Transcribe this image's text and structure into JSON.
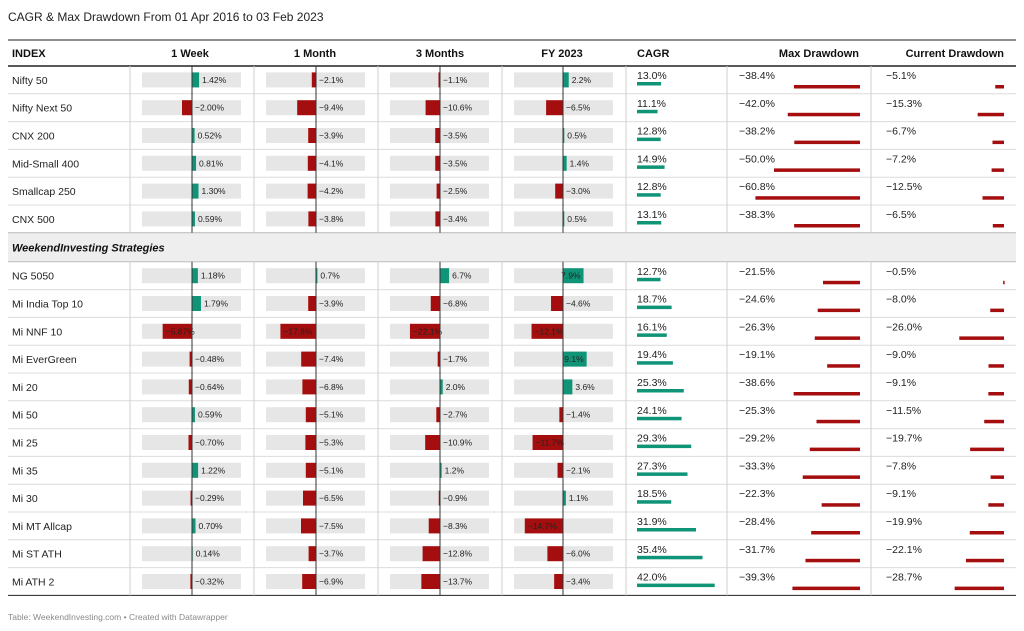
{
  "title": "CAGR & Max Drawdown From 01 Apr 2016 to 03 Feb 2023",
  "footer": "Table: WeekendInvesting.com • Created with Datawrapper",
  "colors": {
    "positive": "#0f9478",
    "negative": "#a50e0e",
    "track": "#e6e6e6",
    "axis": "#333333",
    "section_bg": "#eeeeee"
  },
  "chart_data": {
    "type": "table",
    "columns": [
      "INDEX",
      "1 Week",
      "1 Month",
      "3 Months",
      "FY 2023",
      "CAGR",
      "Max Drawdown",
      "Current Drawdown"
    ],
    "groups": [
      {
        "name": "",
        "rows": [
          {
            "name": "Nifty 50",
            "week": 1.42,
            "month": -2.1,
            "months3": -1.1,
            "fy2023": 2.2,
            "cagr": 13.0,
            "max_dd": -38.4,
            "cur_dd": -5.1
          },
          {
            "name": "Nifty Next 50",
            "week": -2.0,
            "month": -9.4,
            "months3": -10.6,
            "fy2023": -6.5,
            "cagr": 11.1,
            "max_dd": -42.0,
            "cur_dd": -15.3
          },
          {
            "name": "CNX 200",
            "week": 0.52,
            "month": -3.9,
            "months3": -3.5,
            "fy2023": 0.5,
            "cagr": 12.8,
            "max_dd": -38.2,
            "cur_dd": -6.7
          },
          {
            "name": "Mid-Small 400",
            "week": 0.81,
            "month": -4.1,
            "months3": -3.5,
            "fy2023": 1.4,
            "cagr": 14.9,
            "max_dd": -50.0,
            "cur_dd": -7.2
          },
          {
            "name": "Smallcap 250",
            "week": 1.3,
            "month": -4.2,
            "months3": -2.5,
            "fy2023": -3.0,
            "cagr": 12.8,
            "max_dd": -60.8,
            "cur_dd": -12.5
          },
          {
            "name": "CNX 500",
            "week": 0.59,
            "month": -3.8,
            "months3": -3.4,
            "fy2023": 0.5,
            "cagr": 13.1,
            "max_dd": -38.3,
            "cur_dd": -6.5
          }
        ]
      },
      {
        "name": "WeekendInvesting Strategies",
        "rows": [
          {
            "name": "NG 5050",
            "week": 1.18,
            "month": 0.7,
            "months3": 6.7,
            "fy2023": 7.9,
            "cagr": 12.7,
            "max_dd": -21.5,
            "cur_dd": -0.5
          },
          {
            "name": "Mi India Top 10",
            "week": 1.79,
            "month": -3.9,
            "months3": -6.8,
            "fy2023": -4.6,
            "cagr": 18.7,
            "max_dd": -24.6,
            "cur_dd": -8.0
          },
          {
            "name": "Mi NNF 10",
            "week": -5.87,
            "month": -17.8,
            "months3": -22.1,
            "fy2023": -12.1,
            "cagr": 16.1,
            "max_dd": -26.3,
            "cur_dd": -26.0
          },
          {
            "name": "Mi EverGreen",
            "week": -0.48,
            "month": -7.4,
            "months3": -1.7,
            "fy2023": 9.1,
            "cagr": 19.4,
            "max_dd": -19.1,
            "cur_dd": -9.0
          },
          {
            "name": "Mi 20",
            "week": -0.64,
            "month": -6.8,
            "months3": 2.0,
            "fy2023": 3.6,
            "cagr": 25.3,
            "max_dd": -38.6,
            "cur_dd": -9.1
          },
          {
            "name": "Mi 50",
            "week": 0.59,
            "month": -5.1,
            "months3": -2.7,
            "fy2023": -1.4,
            "cagr": 24.1,
            "max_dd": -25.3,
            "cur_dd": -11.5
          },
          {
            "name": "Mi 25",
            "week": -0.7,
            "month": -5.3,
            "months3": -10.9,
            "fy2023": -11.7,
            "cagr": 29.3,
            "max_dd": -29.2,
            "cur_dd": -19.7
          },
          {
            "name": "Mi 35",
            "week": 1.22,
            "month": -5.1,
            "months3": 1.2,
            "fy2023": -2.1,
            "cagr": 27.3,
            "max_dd": -33.3,
            "cur_dd": -7.8
          },
          {
            "name": "Mi 30",
            "week": -0.29,
            "month": -6.5,
            "months3": -0.9,
            "fy2023": 1.1,
            "cagr": 18.5,
            "max_dd": -22.3,
            "cur_dd": -9.1
          },
          {
            "name": "Mi MT Allcap",
            "week": 0.7,
            "month": -7.5,
            "months3": -8.3,
            "fy2023": -14.7,
            "cagr": 31.9,
            "max_dd": -28.4,
            "cur_dd": -19.9
          },
          {
            "name": "Mi ST ATH",
            "week": 0.14,
            "month": -3.7,
            "months3": -12.8,
            "fy2023": -6.0,
            "cagr": 35.4,
            "max_dd": -31.7,
            "cur_dd": -22.1
          },
          {
            "name": "Mi ATH 2",
            "week": -0.32,
            "month": -6.9,
            "months3": -13.7,
            "fy2023": -3.4,
            "cagr": 42.0,
            "max_dd": -39.3,
            "cur_dd": -28.7
          }
        ]
      }
    ]
  }
}
